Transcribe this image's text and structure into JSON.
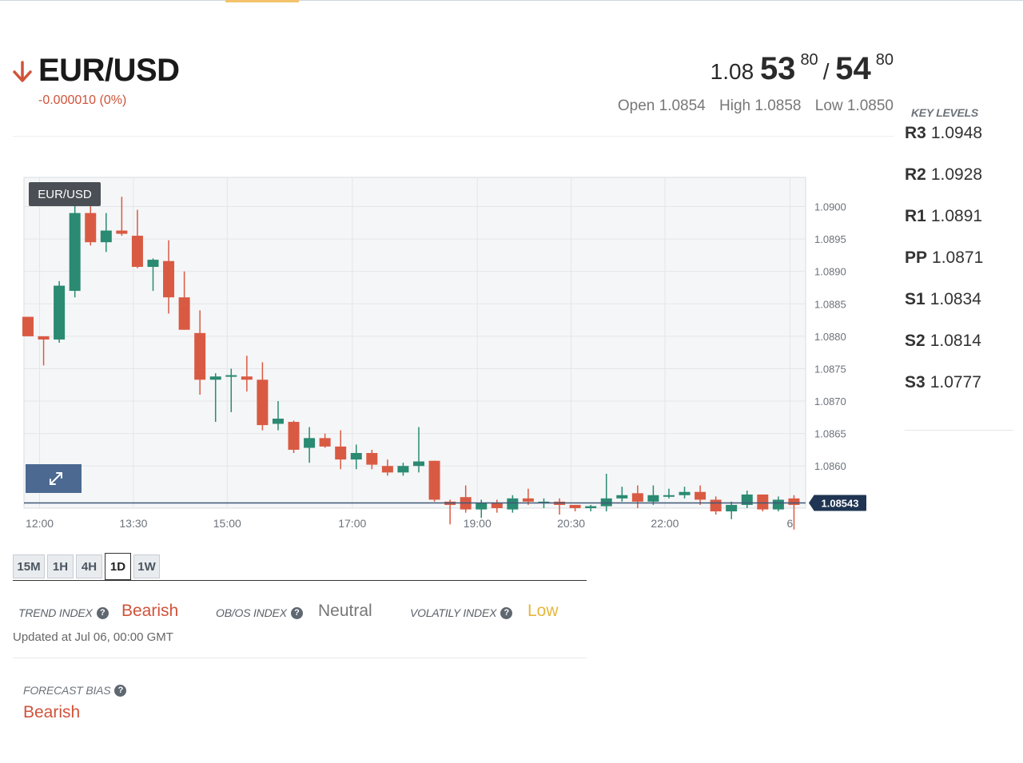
{
  "header": {
    "symbol": "EUR/USD",
    "change": "-0.000010 (0%)",
    "direction_icon": "arrow-down-icon"
  },
  "quote": {
    "bid_prefix": "1.08",
    "bid_big": "53",
    "bid_pip": "80",
    "separator": "/",
    "ask_big": "54",
    "ask_pip": "80",
    "open": "Open 1.0854",
    "high": "High 1.0858",
    "low": "Low 1.0850"
  },
  "key_levels": {
    "title": "KEY LEVELS",
    "levels": [
      {
        "label": "R3",
        "value": "1.0948"
      },
      {
        "label": "R2",
        "value": "1.0928"
      },
      {
        "label": "R1",
        "value": "1.0891"
      },
      {
        "label": "PP",
        "value": "1.0871"
      },
      {
        "label": "S1",
        "value": "1.0834"
      },
      {
        "label": "S2",
        "value": "1.0814"
      },
      {
        "label": "S3",
        "value": "1.0777"
      }
    ]
  },
  "chart_data": {
    "type": "candlestick",
    "title": "EUR/USD",
    "ylim": [
      1.08535,
      1.09045
    ],
    "y_ticks": [
      "1.0900",
      "1.0895",
      "1.0890",
      "1.0885",
      "1.0880",
      "1.0875",
      "1.0870",
      "1.0865",
      "1.0860"
    ],
    "x_ticks": [
      "12:00",
      "13:30",
      "15:00",
      "17:00",
      "19:00",
      "20:30",
      "22:00",
      "6"
    ],
    "x_tick_hours": [
      12,
      13.5,
      15,
      17,
      19,
      20.5,
      22,
      24
    ],
    "x_start_hour": 11.75,
    "x_end_hour": 24.25,
    "candle_interval_minutes": 15,
    "current_price": "1.08543",
    "current_price_value": 1.08543,
    "colors": {
      "up": "#2a8a72",
      "down": "#d95a43",
      "grid": "#e3e6e9",
      "bg": "#f5f6f7"
    },
    "candles": [
      {
        "o": 1.0883,
        "h": 1.0883,
        "l": 1.088,
        "c": 1.088
      },
      {
        "o": 1.088,
        "h": 1.088,
        "l": 1.08755,
        "c": 1.08795
      },
      {
        "o": 1.08795,
        "h": 1.08885,
        "l": 1.0879,
        "c": 1.08878
      },
      {
        "o": 1.0887,
        "h": 1.0901,
        "l": 1.0886,
        "c": 1.0899
      },
      {
        "o": 1.0899,
        "h": 1.0902,
        "l": 1.0894,
        "c": 1.08945
      },
      {
        "o": 1.08945,
        "h": 1.0899,
        "l": 1.0893,
        "c": 1.08963
      },
      {
        "o": 1.08963,
        "h": 1.09015,
        "l": 1.08955,
        "c": 1.08958
      },
      {
        "o": 1.08955,
        "h": 1.08995,
        "l": 1.08905,
        "c": 1.08907
      },
      {
        "o": 1.08907,
        "h": 1.0892,
        "l": 1.0887,
        "c": 1.08918
      },
      {
        "o": 1.08916,
        "h": 1.08948,
        "l": 1.08835,
        "c": 1.0886
      },
      {
        "o": 1.0886,
        "h": 1.089,
        "l": 1.0881,
        "c": 1.0881
      },
      {
        "o": 1.08805,
        "h": 1.0884,
        "l": 1.0871,
        "c": 1.08733
      },
      {
        "o": 1.08733,
        "h": 1.08743,
        "l": 1.08668,
        "c": 1.08738
      },
      {
        "o": 1.08738,
        "h": 1.0875,
        "l": 1.08683,
        "c": 1.0874
      },
      {
        "o": 1.08738,
        "h": 1.0877,
        "l": 1.08715,
        "c": 1.08733
      },
      {
        "o": 1.08733,
        "h": 1.0876,
        "l": 1.08655,
        "c": 1.08663
      },
      {
        "o": 1.08665,
        "h": 1.087,
        "l": 1.08655,
        "c": 1.08673
      },
      {
        "o": 1.08668,
        "h": 1.0867,
        "l": 1.0862,
        "c": 1.08625
      },
      {
        "o": 1.08628,
        "h": 1.0866,
        "l": 1.08605,
        "c": 1.08643
      },
      {
        "o": 1.08643,
        "h": 1.0865,
        "l": 1.08628,
        "c": 1.0863
      },
      {
        "o": 1.0863,
        "h": 1.08655,
        "l": 1.08595,
        "c": 1.0861
      },
      {
        "o": 1.0861,
        "h": 1.08633,
        "l": 1.08595,
        "c": 1.0862
      },
      {
        "o": 1.0862,
        "h": 1.08625,
        "l": 1.08595,
        "c": 1.08602
      },
      {
        "o": 1.086,
        "h": 1.0861,
        "l": 1.08585,
        "c": 1.0859
      },
      {
        "o": 1.0859,
        "h": 1.08605,
        "l": 1.08585,
        "c": 1.086
      },
      {
        "o": 1.086,
        "h": 1.0866,
        "l": 1.0859,
        "c": 1.08607
      },
      {
        "o": 1.08608,
        "h": 1.08608,
        "l": 1.08545,
        "c": 1.08548
      },
      {
        "o": 1.08545,
        "h": 1.08548,
        "l": 1.0851,
        "c": 1.0854
      },
      {
        "o": 1.08552,
        "h": 1.0857,
        "l": 1.08528,
        "c": 1.08533
      },
      {
        "o": 1.08533,
        "h": 1.08548,
        "l": 1.0852,
        "c": 1.08543
      },
      {
        "o": 1.08543,
        "h": 1.08548,
        "l": 1.08528,
        "c": 1.08535
      },
      {
        "o": 1.08533,
        "h": 1.08555,
        "l": 1.08528,
        "c": 1.0855
      },
      {
        "o": 1.0855,
        "h": 1.08565,
        "l": 1.0854,
        "c": 1.08545
      },
      {
        "o": 1.08545,
        "h": 1.0855,
        "l": 1.08535,
        "c": 1.08545
      },
      {
        "o": 1.08545,
        "h": 1.0855,
        "l": 1.08525,
        "c": 1.0854
      },
      {
        "o": 1.0854,
        "h": 1.0854,
        "l": 1.0853,
        "c": 1.08535
      },
      {
        "o": 1.08535,
        "h": 1.0854,
        "l": 1.0853,
        "c": 1.08538
      },
      {
        "o": 1.08538,
        "h": 1.08588,
        "l": 1.0853,
        "c": 1.0855
      },
      {
        "o": 1.0855,
        "h": 1.08568,
        "l": 1.08545,
        "c": 1.08555
      },
      {
        "o": 1.08558,
        "h": 1.0857,
        "l": 1.08535,
        "c": 1.08545
      },
      {
        "o": 1.08545,
        "h": 1.0857,
        "l": 1.0854,
        "c": 1.08555
      },
      {
        "o": 1.08553,
        "h": 1.08565,
        "l": 1.0855,
        "c": 1.08555
      },
      {
        "o": 1.08555,
        "h": 1.08568,
        "l": 1.0855,
        "c": 1.0856
      },
      {
        "o": 1.0856,
        "h": 1.0857,
        "l": 1.0854,
        "c": 1.08548
      },
      {
        "o": 1.08548,
        "h": 1.08553,
        "l": 1.08525,
        "c": 1.0853
      },
      {
        "o": 1.0853,
        "h": 1.08545,
        "l": 1.08518,
        "c": 1.0854
      },
      {
        "o": 1.0854,
        "h": 1.08562,
        "l": 1.08535,
        "c": 1.08556
      },
      {
        "o": 1.08556,
        "h": 1.08556,
        "l": 1.0853,
        "c": 1.08533
      },
      {
        "o": 1.08533,
        "h": 1.08553,
        "l": 1.0853,
        "c": 1.08548
      },
      {
        "o": 1.0855,
        "h": 1.08555,
        "l": 1.08502,
        "c": 1.0854
      }
    ]
  },
  "timeframes": [
    "15M",
    "1H",
    "4H",
    "1D",
    "1W"
  ],
  "active_timeframe": "1D",
  "indices": {
    "trend": {
      "label": "TREND INDEX",
      "value": "Bearish",
      "color": "#d0533a"
    },
    "obos": {
      "label": "OB/OS INDEX",
      "value": "Neutral",
      "color": "#777777"
    },
    "volatility": {
      "label": "VOLATILY INDEX",
      "value": "Low",
      "color": "#e6b73d"
    },
    "help_icon": "question-circle-icon"
  },
  "updated": "Updated at Jul 06, 00:00 GMT",
  "forecast": {
    "label": "FORECAST BIAS",
    "value": "Bearish"
  }
}
